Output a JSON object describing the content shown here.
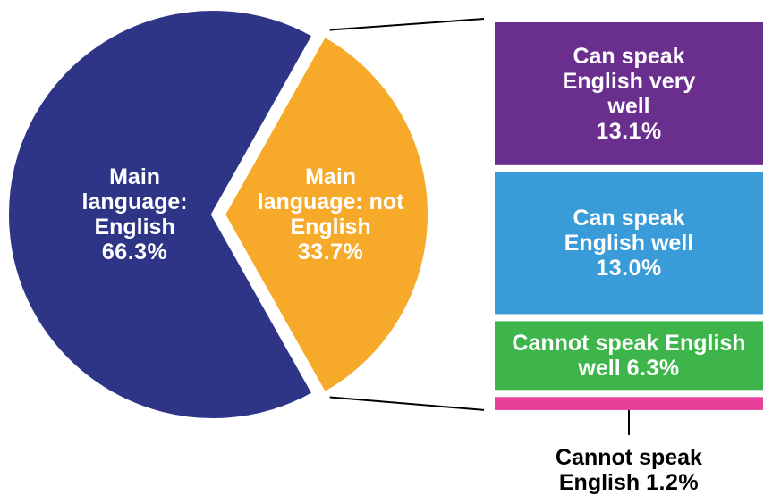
{
  "chart_data": {
    "type": "pie",
    "categories": [
      "Main language: English",
      "Main language: not English"
    ],
    "values": [
      66.3,
      33.7
    ],
    "value_labels": [
      "66.3%",
      "33.7%"
    ],
    "colors": [
      "#2e3586",
      "#f7a929"
    ],
    "breakdown": {
      "categories": [
        "Can speak English very well",
        "Can speak English well",
        "Cannot speak English well",
        "Cannot speak English"
      ],
      "values": [
        13.1,
        13.0,
        6.3,
        1.2
      ],
      "value_labels": [
        "13.1%",
        "13.0%",
        "6.3%",
        "1.2%"
      ],
      "colors": [
        "#6a2e8e",
        "#3a9bd9",
        "#3db54a",
        "#e8409a"
      ]
    }
  }
}
